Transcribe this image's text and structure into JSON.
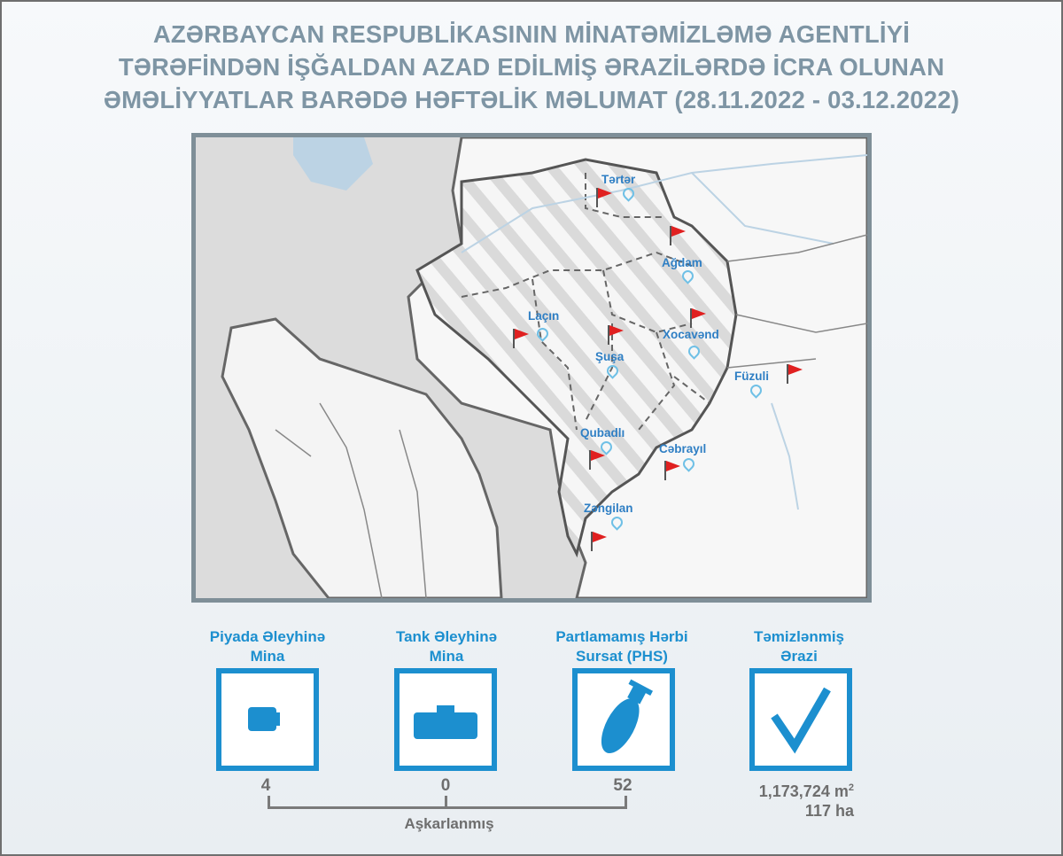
{
  "title": {
    "lines": [
      "AZƏRBAYCAN RESPUBLİKASININ MİNATƏMİZLƏMƏ AGENTLİYİ",
      "TƏRƏFİNDƏN İŞĞALDAN AZAD EDİLMİŞ ƏRAZİLƏRDƏ İCRA OLUNAN",
      "ƏMƏLİYYATLAR BARƏDƏ HƏFTƏLİK MƏLUMAT (28.11.2022 - 03.12.2022)"
    ]
  },
  "map": {
    "cities": [
      "Tərtər",
      "Ağdam",
      "Laçın",
      "Şuşa",
      "Xocavənd",
      "Füzuli",
      "Qubadlı",
      "Cəbrayıl",
      "Zəngilan"
    ],
    "colors": {
      "label": "#2f7fc4",
      "pin": "#6fc0e6",
      "flag": "#e02020",
      "liberated_stripes": "#c9c9c9"
    }
  },
  "stats": {
    "items": [
      {
        "label_line1": "Piyada Əleyhinə",
        "label_line2": "Mina",
        "icon": "anti-personnel-mine-icon",
        "value": "4"
      },
      {
        "label_line1": "Tank Əleyhinə",
        "label_line2": "Mina",
        "icon": "anti-tank-mine-icon",
        "value": "0"
      },
      {
        "label_line1": "Partlamamış Hərbi",
        "label_line2": "Sursat (PHS)",
        "icon": "bomb-icon",
        "value": "52"
      },
      {
        "label_line1": "Təmizlənmiş",
        "label_line2": "Ərazi",
        "icon": "checkmark-icon"
      }
    ],
    "detected_label": "Aşkarlanmış",
    "cleared_area_m2": "1,173,724",
    "m2_unit": "m",
    "m2_exp": "2",
    "cleared_area_ha": "117",
    "ha_unit": "ha",
    "accent_color": "#1c8fcf"
  }
}
